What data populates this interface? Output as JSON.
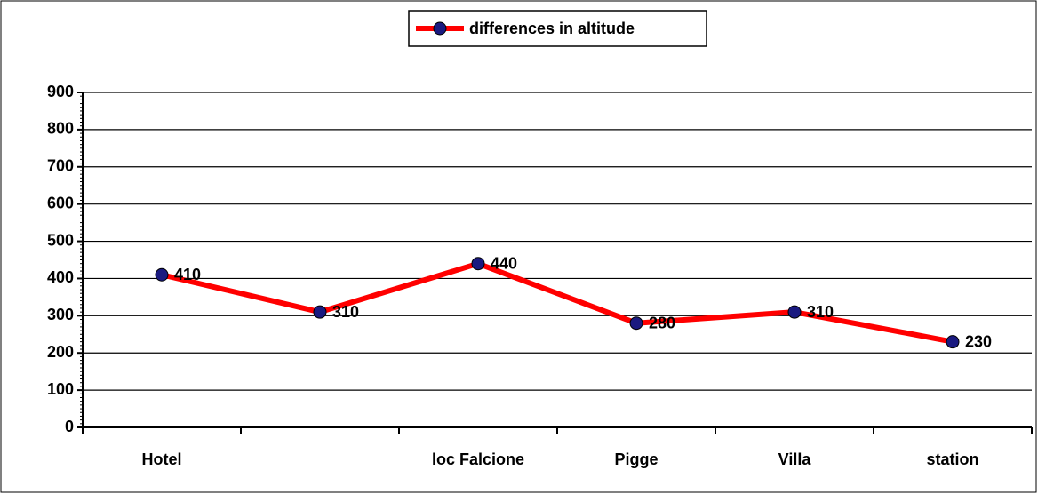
{
  "chart_data": {
    "type": "line",
    "categories": [
      "Hotel",
      null,
      "loc Falcione",
      "Pigge",
      "Villa",
      "station"
    ],
    "series": [
      {
        "name": "differences in altitude",
        "color": "#ff0000",
        "marker_color": "#1a1a80",
        "values": [
          410,
          310,
          440,
          280,
          310,
          230
        ]
      }
    ],
    "ylim": [
      0,
      900
    ],
    "yticks": [
      0,
      100,
      200,
      300,
      400,
      500,
      600,
      700,
      800,
      900
    ],
    "grid": true,
    "legend": "top"
  }
}
